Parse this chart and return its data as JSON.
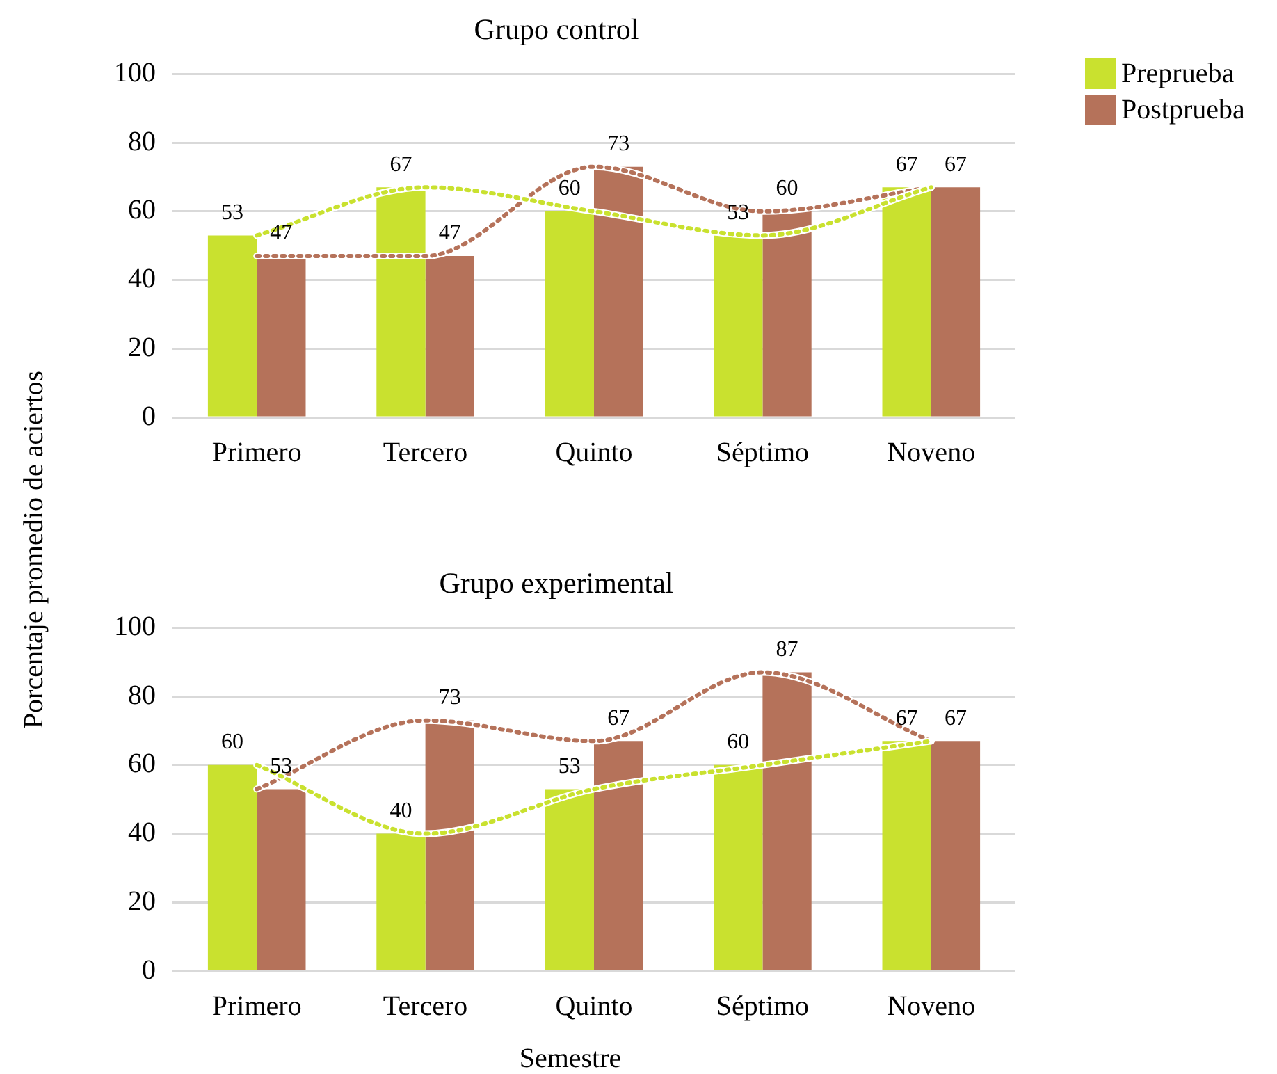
{
  "chart_data": [
    {
      "type": "bar",
      "title": "Grupo control",
      "ylabel": "Porcentaje promedio de aciertos",
      "categories": [
        "Primero",
        "Tercero",
        "Quinto",
        "Séptimo",
        "Noveno"
      ],
      "ylim": [
        0,
        100
      ],
      "yticks": [
        0,
        20,
        40,
        60,
        80,
        100
      ],
      "grid": "y",
      "legend": "top right",
      "series": [
        {
          "name": "Preprueba",
          "color": "#c9e12f",
          "values": [
            53,
            67,
            60,
            53,
            67
          ],
          "value_labels": [
            "53",
            "67",
            "60",
            "53",
            "67"
          ]
        },
        {
          "name": "Postprueba",
          "color": "#b5725a",
          "values": [
            47,
            47,
            73,
            60,
            67
          ],
          "value_labels": [
            "47",
            "47",
            "73",
            "60",
            "67"
          ]
        },
        {
          "type": "line",
          "color": "#c9e12f",
          "line_style": "dotted",
          "marker": "none",
          "values": [
            53,
            67,
            60,
            53,
            67
          ]
        },
        {
          "type": "line",
          "color": "#b5725a",
          "line_style": "dotted",
          "marker": "none",
          "values": [
            47,
            47,
            73,
            60,
            67
          ]
        }
      ]
    },
    {
      "type": "bar",
      "title": "Grupo experimental",
      "xlabel": "Semestre",
      "categories": [
        "Primero",
        "Tercero",
        "Quinto",
        "Séptimo",
        "Noveno"
      ],
      "ylim": [
        0,
        100
      ],
      "yticks": [
        0,
        20,
        40,
        60,
        80,
        100
      ],
      "grid": "y",
      "series": [
        {
          "color": "#c9e12f",
          "values": [
            60,
            40,
            53,
            60,
            67
          ],
          "value_labels": [
            "60",
            "40",
            "53",
            "60",
            "67"
          ]
        },
        {
          "color": "#b5725a",
          "values": [
            53,
            73,
            67,
            87,
            67
          ],
          "value_labels": [
            "53",
            "73",
            "67",
            "87",
            "67"
          ]
        },
        {
          "type": "line",
          "color": "#c9e12f",
          "line_style": "dotted",
          "marker": "none",
          "values": [
            60,
            40,
            53,
            60,
            67
          ]
        },
        {
          "type": "line",
          "color": "#b5725a",
          "line_style": "dotted",
          "marker": "none",
          "values": [
            53,
            73,
            67,
            87,
            67
          ]
        }
      ]
    }
  ]
}
